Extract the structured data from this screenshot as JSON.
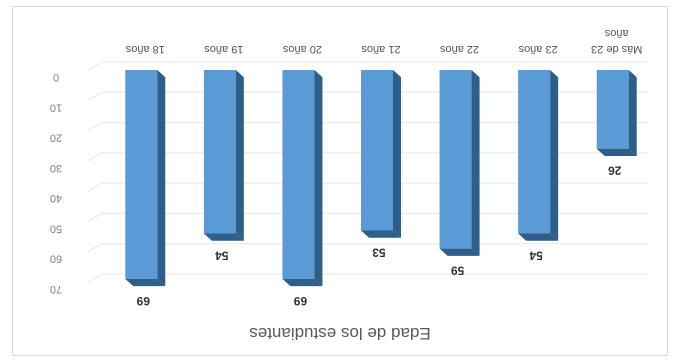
{
  "chart_data": {
    "type": "bar",
    "title": "Edad de los estudiantes",
    "categories": [
      "18 años",
      "19 años",
      "20 años",
      "21 años",
      "22 años",
      "23 años",
      "Más de 23 años"
    ],
    "values": [
      69,
      54,
      69,
      53,
      59,
      54,
      26
    ],
    "ylim": [
      0,
      70
    ],
    "y_ticks": [
      "0",
      "10",
      "20",
      "30",
      "40",
      "50",
      "60",
      "70"
    ],
    "y_tick_values": [
      0,
      10,
      20,
      30,
      40,
      50,
      60,
      70
    ],
    "grid": true,
    "legend": "none",
    "orientation": "bars hanging from top axis (image rendered inverted)",
    "colors": {
      "bar_front": "#5b9bd5",
      "bar_side": "#2e5f8a",
      "bar_top": "#9dc3e6",
      "grid": "#e6e6e6"
    }
  }
}
